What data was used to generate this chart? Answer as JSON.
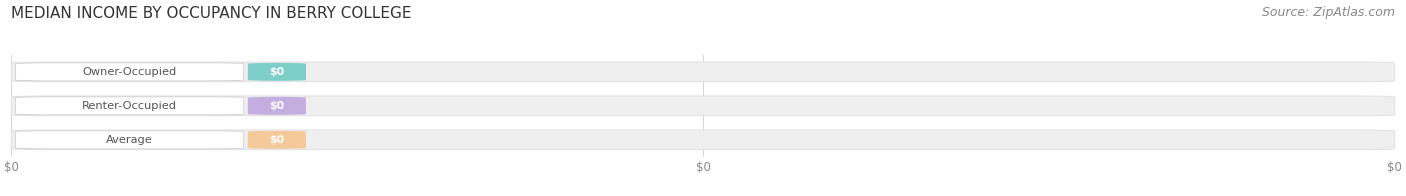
{
  "title": "MEDIAN INCOME BY OCCUPANCY IN BERRY COLLEGE",
  "source": "Source: ZipAtlas.com",
  "categories": [
    "Owner-Occupied",
    "Renter-Occupied",
    "Average"
  ],
  "values": [
    0,
    0,
    0
  ],
  "bar_colors": [
    "#7ececa",
    "#c4aee0",
    "#f5c99a"
  ],
  "value_labels": [
    "$0",
    "$0",
    "$0"
  ],
  "x_tick_labels": [
    "$0",
    "$0",
    "$0"
  ],
  "x_tick_positions": [
    0.0,
    0.5,
    1.0
  ],
  "background_color": "#ffffff",
  "track_color": "#efefef",
  "track_border_color": "#e0e0e0",
  "label_bg_color": "#ffffff",
  "label_border_color": "#d0d0d0",
  "title_fontsize": 11,
  "source_fontsize": 9,
  "fig_width": 14.06,
  "fig_height": 1.96
}
